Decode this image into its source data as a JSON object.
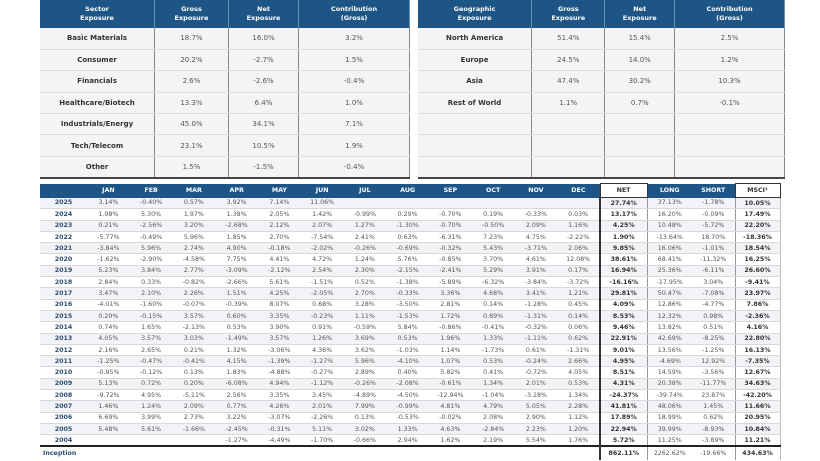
{
  "sector": {
    "headers": [
      "Sector\nExposure",
      "Gross\nExposure",
      "Net\nExposure",
      "Contribution\n(Gross)"
    ],
    "rows": [
      [
        "Basic Materials",
        "18.7%",
        "16.0%",
        "3.2%"
      ],
      [
        "Consumer",
        "20.2%",
        "-2.7%",
        "1.5%"
      ],
      [
        "Financials",
        "2.6%",
        "-2.6%",
        "-0.4%"
      ],
      [
        "Healthcare/Biotech",
        "13.3%",
        "6.4%",
        "1.0%"
      ],
      [
        "Industrials/Energy",
        "45.0%",
        "34.1%",
        "7.1%"
      ],
      [
        "Tech/Telecom",
        "23.1%",
        "10.5%",
        "1.9%"
      ],
      [
        "Other",
        "1.5%",
        "-1.5%",
        "-0.4%"
      ]
    ]
  },
  "geo": {
    "headers": [
      "Geographic\nExposure",
      "Gross\nExposure",
      "Net\nExposure",
      "Contribution\n(Gross)"
    ],
    "rows": [
      [
        "North America",
        "51.4%",
        "15.4%",
        "2.5%"
      ],
      [
        "Europe",
        "24.5%",
        "14.0%",
        "1.2%"
      ],
      [
        "Asia",
        "47.4%",
        "30.2%",
        "10.3%"
      ],
      [
        "Rest of World",
        "1.1%",
        "0.7%",
        "-0.1%"
      ],
      [
        "",
        "",
        "",
        ""
      ],
      [
        "",
        "",
        "",
        ""
      ],
      [
        "",
        "",
        "",
        ""
      ]
    ]
  },
  "performance": {
    "headers": [
      "",
      "JAN",
      "FEB",
      "MAR",
      "APR",
      "MAY",
      "JUN",
      "JUL",
      "AUG",
      "SEP",
      "OCT",
      "NOV",
      "DEC",
      "NET",
      "LONG",
      "SHORT",
      "MSCI¹"
    ],
    "rows": [
      [
        "2025",
        "3.14%",
        "-0.40%",
        "0.57%",
        "3.92%",
        "7.14%",
        "11.06%",
        "",
        "",
        "",
        "",
        "",
        "",
        "27.74%",
        "37.13%",
        "-1.78%",
        "10.05%"
      ],
      [
        "2024",
        "1.98%",
        "5.30%",
        "1.97%",
        "1.38%",
        "2.05%",
        "1.42%",
        "-0.99%",
        "0.29%",
        "-0.70%",
        "0.19%",
        "-0.33%",
        "0.03%",
        "13.17%",
        "16.20%",
        "-0.09%",
        "17.49%"
      ],
      [
        "2023",
        "0.21%",
        "-2.56%",
        "3.20%",
        "-2.68%",
        "2.12%",
        "2.07%",
        "1.27%",
        "-1.30%",
        "-0.70%",
        "-0.50%",
        "2.09%",
        "1.16%",
        "4.25%",
        "10.48%",
        "-5.72%",
        "22.20%"
      ],
      [
        "2022",
        "-5.77%",
        "-0.49%",
        "5.96%",
        "1.85%",
        "2.70%",
        "-7.54%",
        "2.41%",
        "0.63%",
        "-6.31%",
        "7.23%",
        "4.75%",
        "-2.22%",
        "1.90%",
        "-13.64%",
        "18.70%",
        "-18.36%"
      ],
      [
        "2021",
        "-3.84%",
        "5.96%",
        "2.74%",
        "4.90%",
        "-0.18%",
        "-2.02%",
        "-0.26%",
        "-0.69%",
        "-0.32%",
        "5.43%",
        "-3.71%",
        "2.06%",
        "9.85%",
        "16.06%",
        "-1.01%",
        "18.54%"
      ],
      [
        "2020",
        "-1.62%",
        "-2.90%",
        "-4.58%",
        "7.75%",
        "4.41%",
        "4.72%",
        "1.24%",
        "5.76%",
        "-0.85%",
        "3.70%",
        "4.61%",
        "12.08%",
        "38.61%",
        "68.41%",
        "-11.32%",
        "16.25%"
      ],
      [
        "2019",
        "5.23%",
        "3.84%",
        "2.77%",
        "-3.09%",
        "-2.12%",
        "2.54%",
        "2.30%",
        "-2.15%",
        "-2.41%",
        "5.29%",
        "3.91%",
        "0.17%",
        "16.94%",
        "25.36%",
        "-6.11%",
        "26.60%"
      ],
      [
        "2018",
        "2.84%",
        "0.33%",
        "-0.82%",
        "-2.66%",
        "5.61%",
        "-1.51%",
        "0.52%",
        "-1.38%",
        "-5.89%",
        "-6.32%",
        "-3.84%",
        "-3.72%",
        "-16.16%",
        "-17.95%",
        "3.04%",
        "-9.41%"
      ],
      [
        "2017",
        "3.47%",
        "2.10%",
        "2.26%",
        "1.51%",
        "4.25%",
        "-2.05%",
        "2.70%",
        "-0.33%",
        "3.36%",
        "4.68%",
        "3.41%",
        "1.21%",
        "29.81%",
        "50.47%",
        "-7.08%",
        "23.97%"
      ],
      [
        "2016",
        "-4.01%",
        "-1.60%",
        "-0.07%",
        "-0.39%",
        "8.07%",
        "0.68%",
        "3.28%",
        "-3.50%",
        "2.81%",
        "0.14%",
        "-1.28%",
        "0.45%",
        "4.09%",
        "12.86%",
        "-4.77%",
        "7.86%"
      ],
      [
        "2015",
        "0.20%",
        "-0.15%",
        "3.57%",
        "0.60%",
        "3.35%",
        "-0.23%",
        "1.11%",
        "-1.53%",
        "1.72%",
        "0.89%",
        "-1.31%",
        "0.14%",
        "8.53%",
        "12.32%",
        "0.98%",
        "-2.36%"
      ],
      [
        "2014",
        "0.74%",
        "1.65%",
        "-2.13%",
        "0.53%",
        "3.90%",
        "0.91%",
        "-0.59%",
        "5.84%",
        "-0.86%",
        "-0.41%",
        "-0.32%",
        "0.06%",
        "9.46%",
        "13.82%",
        "0.51%",
        "4.16%"
      ],
      [
        "2013",
        "4.05%",
        "3.57%",
        "3.03%",
        "-1.49%",
        "3.57%",
        "1.26%",
        "3.69%",
        "0.53%",
        "1.96%",
        "1.33%",
        "-1.11%",
        "0.62%",
        "22.91%",
        "42.69%",
        "-8.25%",
        "22.80%"
      ],
      [
        "2012",
        "2.16%",
        "2.65%",
        "0.21%",
        "1.32%",
        "-3.06%",
        "4.36%",
        "3.62%",
        "-1.03%",
        "1.14%",
        "-1.73%",
        "0.61%",
        "-1.31%",
        "9.01%",
        "13.56%",
        "-1.25%",
        "16.13%"
      ],
      [
        "2011",
        "-1.25%",
        "-0.47%",
        "-0.41%",
        "4.15%",
        "-1.39%",
        "-1.27%",
        "5.96%",
        "-4.10%",
        "1.07%",
        "0.53%",
        "-0.24%",
        "2.66%",
        "4.95%",
        "-4.69%",
        "12.92%",
        "-7.35%"
      ],
      [
        "2010",
        "-0.95%",
        "-0.12%",
        "0.13%",
        "1.83%",
        "-4.88%",
        "-0.27%",
        "2.89%",
        "0.40%",
        "5.82%",
        "0.41%",
        "-0.72%",
        "4.05%",
        "8.51%",
        "14.59%",
        "-3.56%",
        "12.67%"
      ],
      [
        "2009",
        "5.13%",
        "0.72%",
        "0.20%",
        "-6.08%",
        "4.94%",
        "-1.12%",
        "-0.26%",
        "-2.08%",
        "-0.61%",
        "1.34%",
        "2.01%",
        "0.53%",
        "4.31%",
        "20.38%",
        "-11.77%",
        "34.63%"
      ],
      [
        "2008",
        "-9.72%",
        "4.95%",
        "-5.11%",
        "2.56%",
        "3.35%",
        "3.45%",
        "-4.89%",
        "-4.50%",
        "-12.94%",
        "-1.04%",
        "-3.28%",
        "1.34%",
        "-24.37%",
        "-39.74%",
        "23.87%",
        "-42.20%"
      ],
      [
        "2007",
        "1.46%",
        "1.24%",
        "2.09%",
        "0.77%",
        "4.26%",
        "2.01%",
        "7.99%",
        "-0.99%",
        "4.81%",
        "4.79%",
        "5.05%",
        "2.28%",
        "41.81%",
        "48.06%",
        "1.45%",
        "11.66%"
      ],
      [
        "2006",
        "6.69%",
        "3.99%",
        "2.73%",
        "3.22%",
        "-3.07%",
        "-2.26%",
        "0.13%",
        "-0.53%",
        "-0.02%",
        "2.08%",
        "2.90%",
        "1.12%",
        "17.89%",
        "18.99%",
        "0.62%",
        "20.95%"
      ],
      [
        "2005",
        "5.48%",
        "5.61%",
        "-1.66%",
        "-2.45%",
        "-0.31%",
        "5.11%",
        "3.02%",
        "1.33%",
        "4.63%",
        "-2.84%",
        "2.23%",
        "1.20%",
        "22.94%",
        "39.99%",
        "-8.93%",
        "10.84%"
      ],
      [
        "2004",
        "",
        "",
        "",
        "-1.27%",
        "-4.49%",
        "-1.70%",
        "-0.66%",
        "2.94%",
        "1.62%",
        "2.19%",
        "5.54%",
        "1.76%",
        "5.72%",
        "11.25%",
        "-3.89%",
        "11.21%"
      ]
    ],
    "inception": {
      "label": "Inception",
      "net": "862.11%",
      "long": "2262.62%",
      "short": "-19.66%",
      "msci": "434.63%"
    }
  },
  "colors": {
    "header_blue": "#1d5686",
    "year_text": "#2c4d70"
  }
}
